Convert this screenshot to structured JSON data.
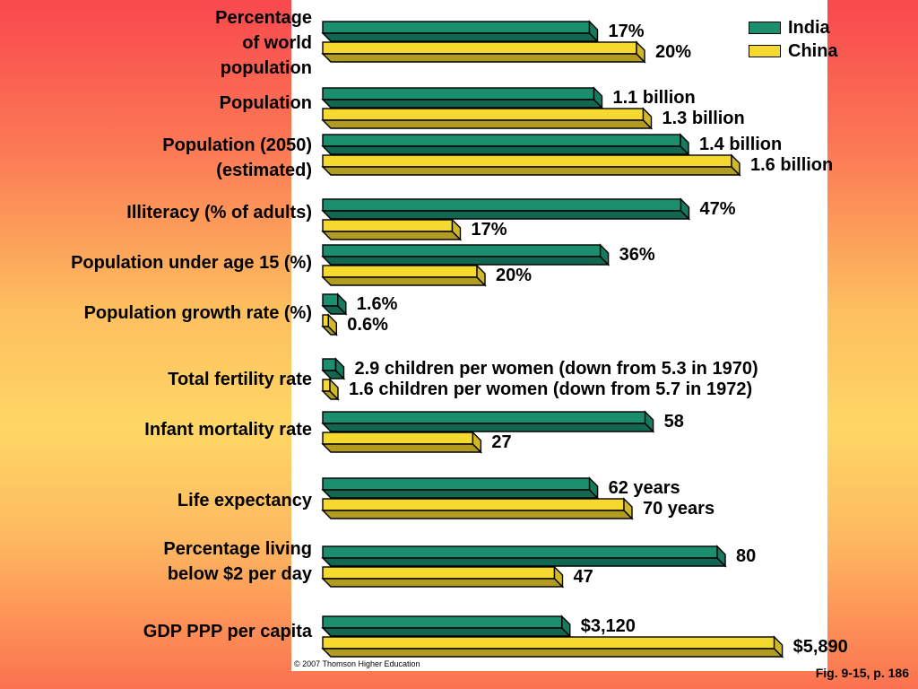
{
  "chart_data": {
    "type": "bar",
    "orientation": "horizontal",
    "legend_position": "top-right",
    "colors": {
      "India": "#1b8e6e",
      "China": "#f6d92e",
      "outline": "#000000"
    },
    "series": [
      {
        "name": "India",
        "color": "#1b8e6e"
      },
      {
        "name": "China",
        "color": "#f6d92e"
      }
    ],
    "legend": [
      "India",
      "China"
    ],
    "categories": [
      {
        "label": "Percentage\nof world\npopulation",
        "india": 17,
        "china": 20,
        "india_label": "17%",
        "china_label": "20%"
      },
      {
        "label": "Population",
        "india": 1.1,
        "china": 1.3,
        "india_label": "1.1 billion",
        "china_label": "1.3 billion"
      },
      {
        "label": "Population (2050)\n(estimated)",
        "india": 1.4,
        "china": 1.6,
        "india_label": "1.4 billion",
        "china_label": "1.6 billion"
      },
      {
        "label": "Illiteracy (% of adults)",
        "india": 47,
        "china": 17,
        "india_label": "47%",
        "china_label": "17%"
      },
      {
        "label": "Population under age 15 (%)",
        "india": 36,
        "china": 20,
        "india_label": "36%",
        "china_label": "20%"
      },
      {
        "label": "Population growth rate (%)",
        "india": 1.6,
        "china": 0.6,
        "india_label": "1.6%",
        "china_label": "0.6%"
      },
      {
        "label": "Total fertility rate",
        "india": 2.9,
        "china": 1.6,
        "india_label": "2.9 children per women (down from 5.3 in 1970)",
        "china_label": "1.6 children per women (down from 5.7 in 1972)"
      },
      {
        "label": "Infant mortality rate",
        "india": 58,
        "china": 27,
        "india_label": "58",
        "china_label": "27"
      },
      {
        "label": "Life expectancy",
        "india": 62,
        "china": 70,
        "india_label": "62 years",
        "china_label": "70 years"
      },
      {
        "label": "Percentage living\nbelow $2 per day",
        "india": 80,
        "china": 47,
        "india_label": "80",
        "china_label": "47"
      },
      {
        "label": "GDP PPP per capita",
        "india": 3120,
        "china": 5890,
        "india_label": "$3,120",
        "china_label": "$5,890"
      }
    ]
  },
  "copyright": "© 2007 Thomson Higher Education",
  "figure_ref": "Fig. 9-15, p. 186"
}
